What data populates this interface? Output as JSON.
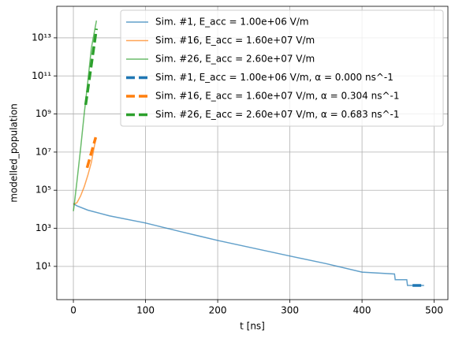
{
  "chart_data": {
    "type": "line",
    "xlabel": "t [ns]",
    "ylabel": "modelled_population",
    "xlim": [
      -23,
      519
    ],
    "xticks": [
      0,
      100,
      200,
      300,
      400,
      500
    ],
    "ylim": [
      0.18,
      450000000000000
    ],
    "log_y": true,
    "yticks": [
      {
        "value": 10,
        "label": "10¹"
      },
      {
        "value": 1000,
        "label": "10³"
      },
      {
        "value": 100000,
        "label": "10⁵"
      },
      {
        "value": 10000000,
        "label": "10⁷"
      },
      {
        "value": 1000000000,
        "label": "10⁹"
      },
      {
        "value": 100000000000,
        "label": "10¹¹"
      },
      {
        "value": 10000000000000,
        "label": "10¹³"
      }
    ],
    "grid": true,
    "legend": "upper right",
    "series": [
      {
        "name": "Sim. #1, E_acc = 1.00e+06 V/m",
        "color": "#1f77b4",
        "dashed": false,
        "x": [
          0,
          5,
          20,
          50,
          100,
          150,
          200,
          250,
          300,
          350,
          400,
          445,
          446,
          462,
          463,
          486
        ],
        "values": [
          20000,
          15000,
          9000,
          4500,
          1900,
          650,
          230,
          90,
          35,
          14,
          5,
          4,
          2,
          2,
          1,
          1
        ]
      },
      {
        "name": "Sim. #16, E_acc = 1.60e+07 V/m",
        "color": "#ff7f0e",
        "dashed": false,
        "x": [
          0,
          5,
          10,
          15,
          20,
          25,
          31
        ],
        "values": [
          18000,
          22000,
          50000,
          150000,
          600000,
          3000000,
          50000000
        ]
      },
      {
        "name": "Sim. #26, E_acc = 2.60e+07 V/m",
        "color": "#2ca02c",
        "dashed": false,
        "x": [
          0,
          1,
          5,
          10,
          15,
          20,
          25,
          32
        ],
        "values": [
          8000,
          15000,
          300000,
          15000000,
          1000000000,
          50000000000,
          3000000000000,
          80000000000000
        ]
      },
      {
        "name": "Sim. #1, E_acc = 1.00e+06 V/m, α = 0.000 ns^-1",
        "color": "#1f77b4",
        "dashed": true,
        "x": [
          470,
          486
        ],
        "values": [
          1,
          1
        ]
      },
      {
        "name": "Sim. #16, E_acc = 1.60e+07 V/m, α = 0.304 ns^-1",
        "color": "#ff7f0e",
        "dashed": true,
        "x": [
          19,
          31
        ],
        "values": [
          1500000,
          60000000
        ]
      },
      {
        "name": "Sim. #26, E_acc = 2.60e+07 V/m, α = 0.683 ns^-1",
        "color": "#2ca02c",
        "dashed": true,
        "x": [
          17,
          32
        ],
        "values": [
          3000000000,
          30000000000000
        ]
      }
    ]
  }
}
